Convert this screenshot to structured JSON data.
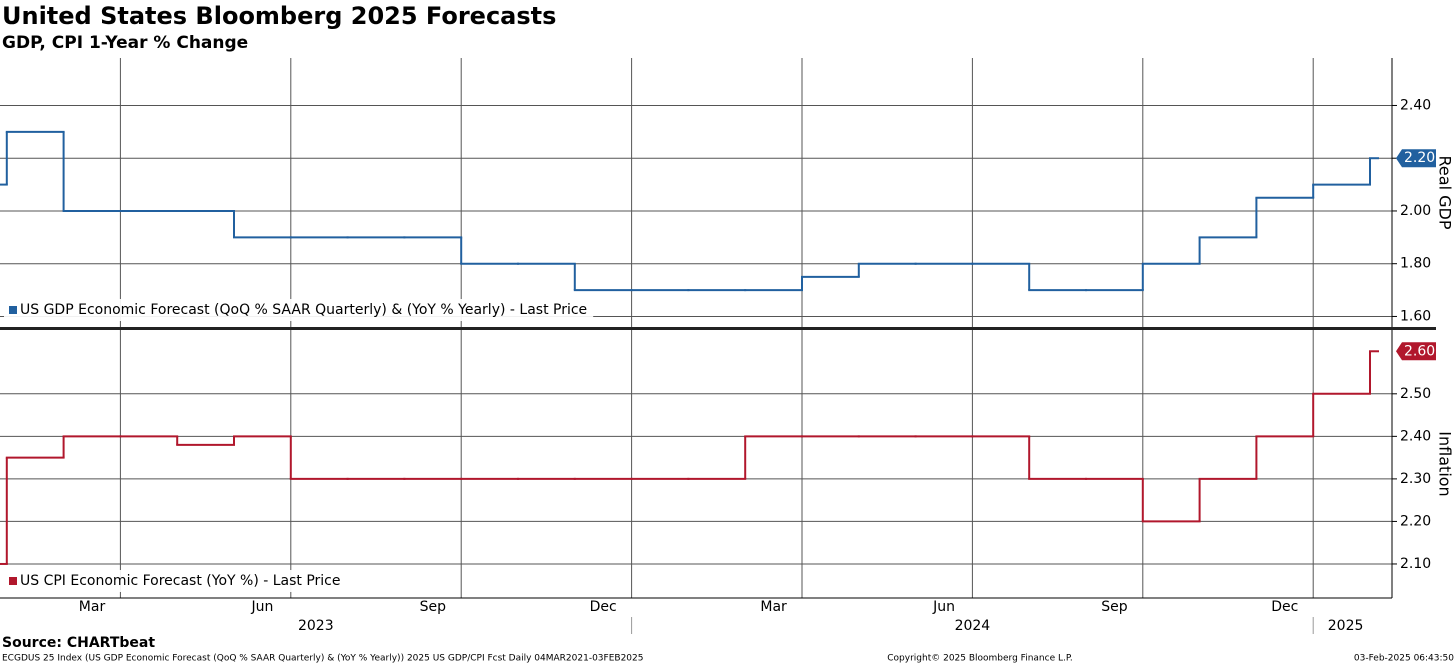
{
  "chart_data": {
    "type": "line",
    "title": "United States Bloomberg 2025 Forecasts",
    "subtitle": "GDP, CPI 1-Year % Change",
    "categories": [
      "2023-01",
      "2023-02",
      "2023-03",
      "2023-04",
      "2023-05",
      "2023-06",
      "2023-07",
      "2023-08",
      "2023-09",
      "2023-10",
      "2023-11",
      "2023-12",
      "2024-01",
      "2024-02",
      "2024-03",
      "2024-04",
      "2024-05",
      "2024-06",
      "2024-07",
      "2024-08",
      "2024-09",
      "2024-10",
      "2024-11",
      "2024-12",
      "2025-01",
      "2025-02"
    ],
    "xticks": [
      {
        "value": "2023-03",
        "label": "Mar"
      },
      {
        "value": "2023-06",
        "label": "Jun"
      },
      {
        "value": "2023-09",
        "label": "Sep"
      },
      {
        "value": "2023-12",
        "label": "Dec"
      },
      {
        "value": "2024-03",
        "label": "Mar"
      },
      {
        "value": "2024-06",
        "label": "Jun"
      },
      {
        "value": "2024-09",
        "label": "Sep"
      },
      {
        "value": "2024-12",
        "label": "Dec"
      }
    ],
    "years": [
      "2023",
      "2024",
      "2025"
    ],
    "panels": [
      {
        "axis_label": "Real GDP",
        "ylim": [
          1.56,
          2.58
        ],
        "yticks": [
          {
            "value": 1.6,
            "label": "1.60"
          },
          {
            "value": 1.8,
            "label": "1.80"
          },
          {
            "value": 2.0,
            "label": "2.00"
          },
          {
            "value": 2.2,
            "label": "2.20"
          },
          {
            "value": 2.4,
            "label": "2.40"
          }
        ],
        "last_label": "2.20",
        "series": [
          {
            "name": "US GDP Economic Forecast (QoQ % SAAR Quarterly) & (YoY % Yearly) - Last Price",
            "color": "#21609f",
            "values": [
              2.1,
              2.3,
              2.0,
              2.0,
              2.0,
              1.9,
              1.9,
              1.9,
              1.9,
              1.8,
              1.8,
              1.7,
              1.7,
              1.7,
              1.7,
              1.75,
              1.8,
              1.8,
              1.8,
              1.7,
              1.7,
              1.8,
              1.9,
              2.05,
              2.1,
              2.2
            ]
          }
        ]
      },
      {
        "axis_label": "Inflation",
        "ylim": [
          2.02,
          2.65
        ],
        "yticks": [
          {
            "value": 2.1,
            "label": "2.10"
          },
          {
            "value": 2.2,
            "label": "2.20"
          },
          {
            "value": 2.3,
            "label": "2.30"
          },
          {
            "value": 2.4,
            "label": "2.40"
          },
          {
            "value": 2.5,
            "label": "2.50"
          }
        ],
        "last_label": "2.60",
        "series": [
          {
            "name": "US CPI Economic Forecast (YoY %) - Last Price",
            "color": "#b1172c",
            "values": [
              2.1,
              2.35,
              2.4,
              2.4,
              2.38,
              2.4,
              2.3,
              2.3,
              2.3,
              2.3,
              2.3,
              2.3,
              2.3,
              2.3,
              2.4,
              2.4,
              2.4,
              2.4,
              2.4,
              2.3,
              2.3,
              2.2,
              2.3,
              2.4,
              2.5,
              2.6
            ]
          }
        ]
      }
    ],
    "source": "Source: CHARTbeat",
    "footnote": "ECGDUS 25 Index (US GDP Economic Forecast (QoQ % SAAR Quarterly) & (YoY % Yearly)) 2025 US GDP/CPI Fcst  Daily 04MAR2021-03FEB2025",
    "copyright": "Copyright© 2025 Bloomberg Finance L.P.",
    "timestamp": "03-Feb-2025 06:43:50"
  }
}
